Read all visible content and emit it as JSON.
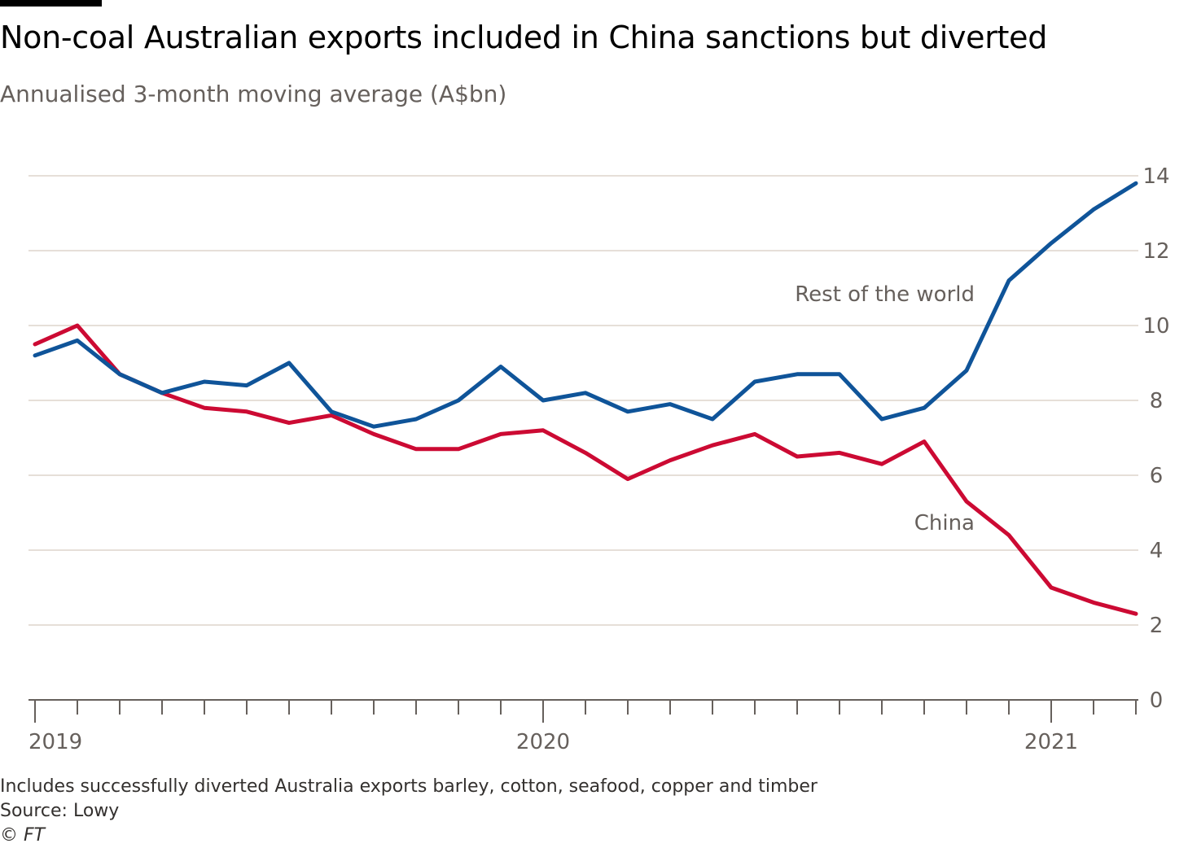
{
  "title": "Non-coal Australian exports included in China sanctions but diverted",
  "subtitle": "Annualised 3-month moving average (A$bn)",
  "footnote": "Includes successfully diverted Australia exports barley, cotton, seafood, copper and timber",
  "source": "Source: Lowy",
  "copyright": "© FT",
  "colors": {
    "rest_of_world": "#0f5499",
    "china": "#cc0a33",
    "grid": "#e6dfd8",
    "axis_text": "#66605c"
  },
  "chart_data": {
    "type": "line",
    "x": [
      "2019-01",
      "2019-02",
      "2019-03",
      "2019-04",
      "2019-05",
      "2019-06",
      "2019-07",
      "2019-08",
      "2019-09",
      "2019-10",
      "2019-11",
      "2019-12",
      "2020-01",
      "2020-02",
      "2020-03",
      "2020-04",
      "2020-05",
      "2020-06",
      "2020-07",
      "2020-08",
      "2020-09",
      "2020-10",
      "2020-11",
      "2020-12",
      "2021-01",
      "2021-02",
      "2021-03"
    ],
    "x_ticks": [
      "2019",
      "2020",
      "2021"
    ],
    "ylim": [
      0,
      14
    ],
    "y_ticks": [
      0,
      2,
      4,
      6,
      8,
      10,
      12,
      14
    ],
    "y_axis_side": "right",
    "grid": true,
    "series": [
      {
        "name": "Rest of the world",
        "color": "#0f5499",
        "values": [
          9.2,
          9.6,
          8.7,
          8.2,
          8.5,
          8.4,
          9.0,
          7.7,
          7.3,
          7.5,
          8.0,
          8.9,
          8.0,
          8.2,
          7.7,
          7.9,
          7.5,
          8.5,
          8.7,
          8.7,
          7.5,
          7.8,
          8.8,
          11.2,
          12.2,
          13.1,
          13.8
        ]
      },
      {
        "name": "China",
        "color": "#cc0a33",
        "values": [
          9.5,
          10.0,
          8.7,
          8.2,
          7.8,
          7.7,
          7.4,
          7.6,
          7.1,
          6.7,
          6.7,
          7.1,
          7.2,
          6.6,
          5.9,
          6.4,
          6.8,
          7.1,
          6.5,
          6.6,
          6.3,
          6.9,
          5.3,
          4.4,
          3.0,
          2.6,
          2.3
        ]
      }
    ]
  }
}
